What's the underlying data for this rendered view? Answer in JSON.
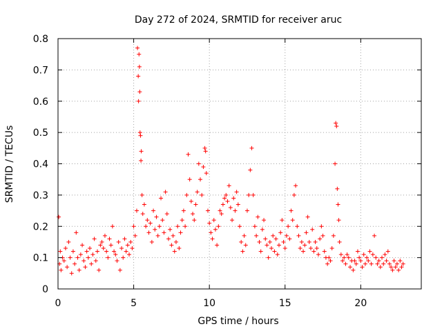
{
  "chart_data": {
    "type": "scatter",
    "title": "Day 272 of 2024, SRMTID for receiver aruc",
    "xlabel": "GPS time / hours",
    "ylabel": "SRMTID / TECUs",
    "xlim": [
      0,
      24
    ],
    "ylim": [
      0,
      0.8
    ],
    "xticks": [
      "0",
      "5",
      "10",
      "15",
      "20"
    ],
    "yticks": [
      "0",
      "0.1",
      "0.2",
      "0.3",
      "0.4",
      "0.5",
      "0.6",
      "0.7",
      "0.8"
    ],
    "grid": true,
    "marker": "+",
    "color": "#ff0000",
    "series": [
      {
        "name": "SRMTID",
        "points": [
          [
            0.05,
            0.23
          ],
          [
            0.1,
            0.08
          ],
          [
            0.15,
            0.12
          ],
          [
            0.2,
            0.06
          ],
          [
            0.3,
            0.1
          ],
          [
            0.4,
            0.09
          ],
          [
            0.5,
            0.13
          ],
          [
            0.6,
            0.07
          ],
          [
            0.7,
            0.15
          ],
          [
            0.8,
            0.1
          ],
          [
            0.9,
            0.05
          ],
          [
            1.0,
            0.12
          ],
          [
            1.1,
            0.08
          ],
          [
            1.2,
            0.18
          ],
          [
            1.3,
            0.1
          ],
          [
            1.4,
            0.06
          ],
          [
            1.5,
            0.11
          ],
          [
            1.6,
            0.14
          ],
          [
            1.7,
            0.09
          ],
          [
            1.8,
            0.07
          ],
          [
            1.9,
            0.12
          ],
          [
            2.0,
            0.1
          ],
          [
            2.1,
            0.13
          ],
          [
            2.2,
            0.08
          ],
          [
            2.3,
            0.11
          ],
          [
            2.4,
            0.16
          ],
          [
            2.5,
            0.09
          ],
          [
            2.6,
            0.12
          ],
          [
            2.7,
            0.06
          ],
          [
            2.8,
            0.14
          ],
          [
            2.9,
            0.15
          ],
          [
            3.0,
            0.13
          ],
          [
            3.1,
            0.17
          ],
          [
            3.2,
            0.12
          ],
          [
            3.3,
            0.1
          ],
          [
            3.4,
            0.16
          ],
          [
            3.5,
            0.14
          ],
          [
            3.6,
            0.2
          ],
          [
            3.7,
            0.12
          ],
          [
            3.8,
            0.11
          ],
          [
            3.9,
            0.09
          ],
          [
            4.0,
            0.15
          ],
          [
            4.1,
            0.06
          ],
          [
            4.2,
            0.13
          ],
          [
            4.3,
            0.1
          ],
          [
            4.4,
            0.16
          ],
          [
            4.5,
            0.12
          ],
          [
            4.6,
            0.14
          ],
          [
            4.7,
            0.11
          ],
          [
            4.8,
            0.15
          ],
          [
            4.9,
            0.13
          ],
          [
            5.0,
            0.2
          ],
          [
            5.1,
            0.17
          ],
          [
            5.2,
            0.25
          ],
          [
            5.25,
            0.77
          ],
          [
            5.3,
            0.68
          ],
          [
            5.32,
            0.6
          ],
          [
            5.35,
            0.75
          ],
          [
            5.38,
            0.71
          ],
          [
            5.4,
            0.63
          ],
          [
            5.42,
            0.5
          ],
          [
            5.45,
            0.49
          ],
          [
            5.48,
            0.41
          ],
          [
            5.5,
            0.44
          ],
          [
            5.55,
            0.3
          ],
          [
            5.6,
            0.24
          ],
          [
            5.7,
            0.27
          ],
          [
            5.8,
            0.2
          ],
          [
            5.9,
            0.22
          ],
          [
            6.0,
            0.18
          ],
          [
            6.1,
            0.21
          ],
          [
            6.2,
            0.15
          ],
          [
            6.3,
            0.25
          ],
          [
            6.4,
            0.19
          ],
          [
            6.5,
            0.23
          ],
          [
            6.6,
            0.17
          ],
          [
            6.7,
            0.2
          ],
          [
            6.8,
            0.29
          ],
          [
            6.9,
            0.22
          ],
          [
            7.0,
            0.18
          ],
          [
            7.1,
            0.31
          ],
          [
            7.2,
            0.24
          ],
          [
            7.3,
            0.16
          ],
          [
            7.4,
            0.19
          ],
          [
            7.5,
            0.14
          ],
          [
            7.6,
            0.17
          ],
          [
            7.7,
            0.12
          ],
          [
            7.8,
            0.15
          ],
          [
            7.9,
            0.2
          ],
          [
            8.0,
            0.13
          ],
          [
            8.1,
            0.18
          ],
          [
            8.2,
            0.22
          ],
          [
            8.3,
            0.25
          ],
          [
            8.4,
            0.2
          ],
          [
            8.5,
            0.3
          ],
          [
            8.6,
            0.43
          ],
          [
            8.7,
            0.35
          ],
          [
            8.8,
            0.28
          ],
          [
            8.9,
            0.24
          ],
          [
            9.0,
            0.22
          ],
          [
            9.1,
            0.27
          ],
          [
            9.2,
            0.31
          ],
          [
            9.3,
            0.4
          ],
          [
            9.4,
            0.35
          ],
          [
            9.5,
            0.3
          ],
          [
            9.6,
            0.39
          ],
          [
            9.7,
            0.45
          ],
          [
            9.75,
            0.44
          ],
          [
            9.8,
            0.37
          ],
          [
            9.9,
            0.25
          ],
          [
            10.0,
            0.21
          ],
          [
            10.1,
            0.18
          ],
          [
            10.2,
            0.16
          ],
          [
            10.3,
            0.22
          ],
          [
            10.4,
            0.19
          ],
          [
            10.5,
            0.14
          ],
          [
            10.6,
            0.2
          ],
          [
            10.7,
            0.25
          ],
          [
            10.8,
            0.24
          ],
          [
            10.9,
            0.27
          ],
          [
            11.0,
            0.29
          ],
          [
            11.1,
            0.3
          ],
          [
            11.2,
            0.28
          ],
          [
            11.3,
            0.33
          ],
          [
            11.4,
            0.26
          ],
          [
            11.5,
            0.22
          ],
          [
            11.6,
            0.29
          ],
          [
            11.7,
            0.25
          ],
          [
            11.8,
            0.31
          ],
          [
            11.9,
            0.27
          ],
          [
            12.0,
            0.2
          ],
          [
            12.1,
            0.15
          ],
          [
            12.2,
            0.12
          ],
          [
            12.3,
            0.17
          ],
          [
            12.4,
            0.14
          ],
          [
            12.5,
            0.25
          ],
          [
            12.6,
            0.3
          ],
          [
            12.7,
            0.38
          ],
          [
            12.8,
            0.45
          ],
          [
            12.9,
            0.3
          ],
          [
            13.0,
            0.2
          ],
          [
            13.1,
            0.17
          ],
          [
            13.2,
            0.23
          ],
          [
            13.3,
            0.15
          ],
          [
            13.4,
            0.12
          ],
          [
            13.5,
            0.19
          ],
          [
            13.6,
            0.22
          ],
          [
            13.7,
            0.16
          ],
          [
            13.8,
            0.14
          ],
          [
            13.9,
            0.1
          ],
          [
            14.0,
            0.15
          ],
          [
            14.1,
            0.13
          ],
          [
            14.2,
            0.17
          ],
          [
            14.3,
            0.12
          ],
          [
            14.4,
            0.16
          ],
          [
            14.5,
            0.11
          ],
          [
            14.6,
            0.14
          ],
          [
            14.7,
            0.18
          ],
          [
            14.8,
            0.22
          ],
          [
            14.9,
            0.15
          ],
          [
            15.0,
            0.13
          ],
          [
            15.1,
            0.17
          ],
          [
            15.2,
            0.2
          ],
          [
            15.3,
            0.16
          ],
          [
            15.4,
            0.25
          ],
          [
            15.5,
            0.22
          ],
          [
            15.6,
            0.3
          ],
          [
            15.7,
            0.33
          ],
          [
            15.8,
            0.2
          ],
          [
            15.9,
            0.17
          ],
          [
            16.0,
            0.13
          ],
          [
            16.1,
            0.15
          ],
          [
            16.2,
            0.12
          ],
          [
            16.3,
            0.14
          ],
          [
            16.4,
            0.18
          ],
          [
            16.5,
            0.23
          ],
          [
            16.6,
            0.15
          ],
          [
            16.7,
            0.13
          ],
          [
            16.8,
            0.19
          ],
          [
            16.9,
            0.12
          ],
          [
            17.0,
            0.15
          ],
          [
            17.1,
            0.13
          ],
          [
            17.2,
            0.11
          ],
          [
            17.3,
            0.16
          ],
          [
            17.4,
            0.2
          ],
          [
            17.5,
            0.17
          ],
          [
            17.6,
            0.12
          ],
          [
            17.7,
            0.1
          ],
          [
            17.8,
            0.08
          ],
          [
            17.9,
            0.1
          ],
          [
            18.0,
            0.09
          ],
          [
            18.1,
            0.13
          ],
          [
            18.2,
            0.17
          ],
          [
            18.3,
            0.4
          ],
          [
            18.35,
            0.53
          ],
          [
            18.4,
            0.52
          ],
          [
            18.45,
            0.32
          ],
          [
            18.5,
            0.27
          ],
          [
            18.55,
            0.22
          ],
          [
            18.6,
            0.15
          ],
          [
            18.7,
            0.11
          ],
          [
            18.8,
            0.09
          ],
          [
            18.9,
            0.1
          ],
          [
            19.0,
            0.08
          ],
          [
            19.1,
            0.11
          ],
          [
            19.2,
            0.1
          ],
          [
            19.3,
            0.07
          ],
          [
            19.4,
            0.09
          ],
          [
            19.5,
            0.06
          ],
          [
            19.6,
            0.09
          ],
          [
            19.7,
            0.08
          ],
          [
            19.8,
            0.12
          ],
          [
            19.9,
            0.1
          ],
          [
            20.0,
            0.09
          ],
          [
            20.1,
            0.07
          ],
          [
            20.2,
            0.11
          ],
          [
            20.3,
            0.08
          ],
          [
            20.4,
            0.1
          ],
          [
            20.5,
            0.09
          ],
          [
            20.6,
            0.12
          ],
          [
            20.7,
            0.08
          ],
          [
            20.8,
            0.11
          ],
          [
            20.9,
            0.17
          ],
          [
            21.0,
            0.1
          ],
          [
            21.1,
            0.08
          ],
          [
            21.2,
            0.09
          ],
          [
            21.3,
            0.07
          ],
          [
            21.4,
            0.1
          ],
          [
            21.5,
            0.08
          ],
          [
            21.6,
            0.11
          ],
          [
            21.7,
            0.09
          ],
          [
            21.8,
            0.12
          ],
          [
            21.9,
            0.08
          ],
          [
            22.0,
            0.07
          ],
          [
            22.1,
            0.06
          ],
          [
            22.2,
            0.09
          ],
          [
            22.3,
            0.07
          ],
          [
            22.4,
            0.08
          ],
          [
            22.5,
            0.06
          ],
          [
            22.6,
            0.09
          ],
          [
            22.7,
            0.07
          ],
          [
            22.8,
            0.08
          ]
        ]
      }
    ]
  }
}
